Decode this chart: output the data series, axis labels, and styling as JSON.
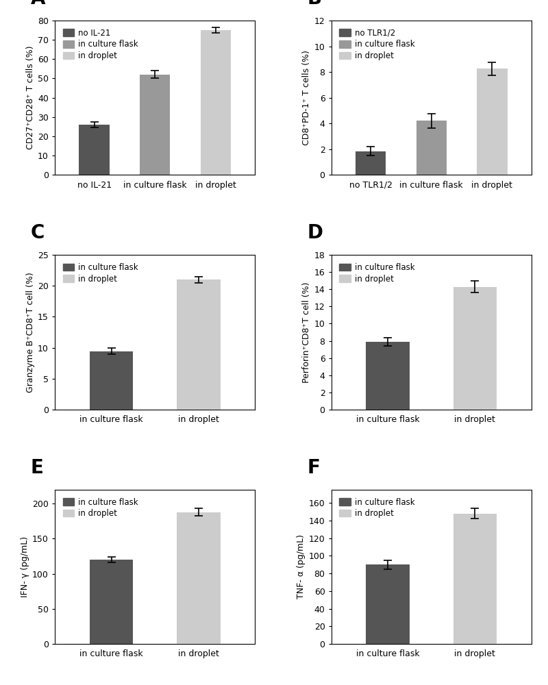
{
  "panels": [
    {
      "label": "A",
      "ylabel": "CD27⁺CD28⁺ T cells (%)",
      "categories": [
        "no IL-21",
        "in culture flask",
        "in droplet"
      ],
      "values": [
        26.0,
        52.0,
        75.0
      ],
      "errors": [
        1.5,
        2.0,
        1.5
      ],
      "colors": [
        "#555555",
        "#999999",
        "#cccccc"
      ],
      "ylim": [
        0,
        80
      ],
      "yticks": [
        0,
        10,
        20,
        30,
        40,
        50,
        60,
        70,
        80
      ],
      "legend_labels": [
        "no IL-21",
        "in culture flask",
        "in droplet"
      ],
      "legend_colors": [
        "#555555",
        "#999999",
        "#cccccc"
      ]
    },
    {
      "label": "B",
      "ylabel": "CD8⁺PD-1⁺ T cells (%)",
      "categories": [
        "no TLR1/2",
        "in culture flask",
        "in droplet"
      ],
      "values": [
        1.85,
        4.2,
        8.25
      ],
      "errors": [
        0.35,
        0.55,
        0.5
      ],
      "colors": [
        "#555555",
        "#999999",
        "#cccccc"
      ],
      "ylim": [
        0,
        12
      ],
      "yticks": [
        0,
        2,
        4,
        6,
        8,
        10,
        12
      ],
      "legend_labels": [
        "no TLR1/2",
        "in culture flask",
        "in droplet"
      ],
      "legend_colors": [
        "#555555",
        "#999999",
        "#cccccc"
      ]
    },
    {
      "label": "C",
      "ylabel": "Granzyme B⁺CD8⁺T cell (%)",
      "categories": [
        "in culture flask",
        "in droplet"
      ],
      "values": [
        9.4,
        21.0
      ],
      "errors": [
        0.5,
        0.5
      ],
      "colors": [
        "#555555",
        "#cccccc"
      ],
      "ylim": [
        0,
        25
      ],
      "yticks": [
        0,
        5,
        10,
        15,
        20,
        25
      ],
      "legend_labels": [
        "in culture flask",
        "in droplet"
      ],
      "legend_colors": [
        "#555555",
        "#cccccc"
      ]
    },
    {
      "label": "D",
      "ylabel": "Perforin⁺CD8⁺T cell (%)",
      "categories": [
        "in culture flask",
        "in droplet"
      ],
      "values": [
        7.9,
        14.3
      ],
      "errors": [
        0.5,
        0.7
      ],
      "colors": [
        "#555555",
        "#cccccc"
      ],
      "ylim": [
        0,
        18
      ],
      "yticks": [
        0,
        2,
        4,
        6,
        8,
        10,
        12,
        14,
        16,
        18
      ],
      "legend_labels": [
        "in culture flask",
        "in droplet"
      ],
      "legend_colors": [
        "#555555",
        "#cccccc"
      ]
    },
    {
      "label": "E",
      "ylabel": "IFN- γ (pg/mL)",
      "categories": [
        "in culture flask",
        "in droplet"
      ],
      "values": [
        120.0,
        188.0
      ],
      "errors": [
        4.0,
        5.0
      ],
      "colors": [
        "#555555",
        "#cccccc"
      ],
      "ylim": [
        0,
        220
      ],
      "yticks": [
        0,
        50,
        100,
        150,
        200
      ],
      "legend_labels": [
        "in culture flask",
        "in droplet"
      ],
      "legend_colors": [
        "#555555",
        "#cccccc"
      ]
    },
    {
      "label": "F",
      "ylabel": "TNF- α (pg/mL)",
      "categories": [
        "in culture flask",
        "in droplet"
      ],
      "values": [
        90.0,
        148.0
      ],
      "errors": [
        5.0,
        6.0
      ],
      "colors": [
        "#555555",
        "#cccccc"
      ],
      "ylim": [
        0,
        175
      ],
      "yticks": [
        0,
        20,
        40,
        60,
        80,
        100,
        120,
        140,
        160
      ],
      "legend_labels": [
        "in culture flask",
        "in droplet"
      ],
      "legend_colors": [
        "#555555",
        "#cccccc"
      ]
    }
  ],
  "background_color": "#ffffff",
  "bar_width": 0.5,
  "capsize": 4
}
